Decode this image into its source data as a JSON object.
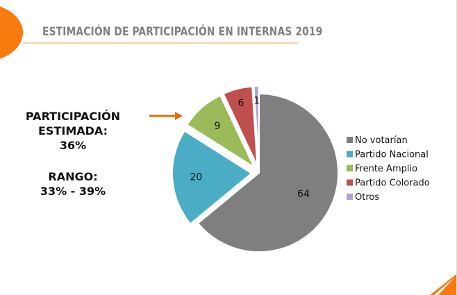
{
  "title": "ESTIMACIÓN DE PARTICIPACIÓN EN INTERNAS 2019",
  "participation": {
    "label1": "PARTICIPACIÓN",
    "label2": "ESTIMADA:",
    "value": "36%"
  },
  "range": {
    "label": "RANGO:",
    "value": "33% - 39%"
  },
  "colors": {
    "accent": "#f77b0f"
  },
  "chart_data": {
    "type": "pie",
    "categories": [
      "No votarían",
      "Partido Nacional",
      "Frente Amplio",
      "Partido Colorado",
      "Otros"
    ],
    "values": [
      64,
      20,
      9,
      6,
      1
    ],
    "colors": [
      "#7f7f7f",
      "#4bacc6",
      "#9bbb59",
      "#c0504d",
      "#b3a2c7"
    ],
    "legend_position": "right",
    "data_labels": true
  }
}
